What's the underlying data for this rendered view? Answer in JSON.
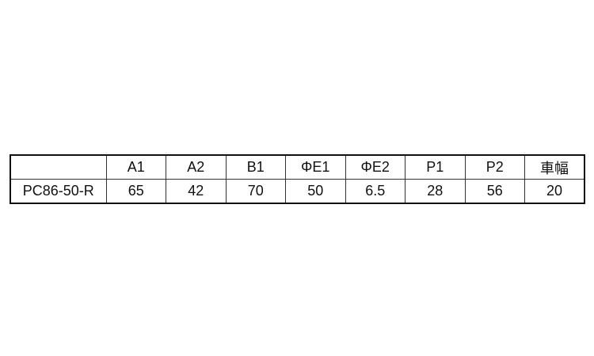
{
  "table": {
    "headers": [
      "",
      "A1",
      "A2",
      "B1",
      "ΦE1",
      "ΦE2",
      "P1",
      "P2",
      "車幅"
    ],
    "rows": [
      [
        "PC86-50-R",
        "65",
        "42",
        "70",
        "50",
        "6.5",
        "28",
        "56",
        "20"
      ]
    ]
  }
}
